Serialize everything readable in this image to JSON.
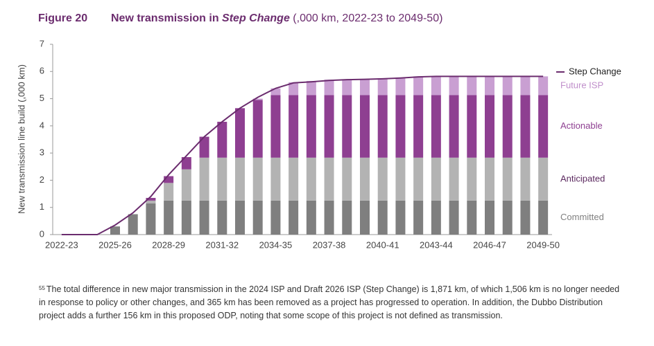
{
  "chart_data": {
    "type": "stacked_bar_line",
    "figure_label": "Figure 20",
    "title": "New transmission in",
    "title_emphasis": "Step Change",
    "subtitle": "(,000 km, 2022-23 to 2049-50)",
    "y_label": "New transmission line build (,000 km)",
    "categories": [
      "2022-23",
      null,
      null,
      "2025-26",
      null,
      null,
      "2028-29",
      null,
      null,
      "2031-32",
      null,
      null,
      "2034-35",
      null,
      null,
      "2037-38",
      null,
      null,
      "2040-41",
      null,
      null,
      "2043-44",
      null,
      null,
      "2046-47",
      null,
      null,
      "2049-50"
    ],
    "series": [
      {
        "name": "Committed",
        "color": "#7f7f7f",
        "label_color": "#808080",
        "values": [
          0,
          0,
          0,
          0.3,
          0.75,
          1.15,
          1.25,
          1.25,
          1.25,
          1.25,
          1.25,
          1.25,
          1.25,
          1.25,
          1.25,
          1.25,
          1.25,
          1.25,
          1.25,
          1.25,
          1.25,
          1.25,
          1.25,
          1.25,
          1.25,
          1.25,
          1.25,
          1.25
        ]
      },
      {
        "name": "Anticipated",
        "color": "#b3b3b3",
        "label_color": "#5c2a60",
        "values": [
          0,
          0,
          0,
          0,
          0,
          0.1,
          0.65,
          1.15,
          1.58,
          1.58,
          1.58,
          1.58,
          1.58,
          1.58,
          1.58,
          1.58,
          1.58,
          1.58,
          1.58,
          1.58,
          1.58,
          1.58,
          1.58,
          1.58,
          1.58,
          1.58,
          1.58,
          1.58
        ]
      },
      {
        "name": "Actionable",
        "color": "#8e3f91",
        "label_color": "#8e3f91",
        "values": [
          0,
          0,
          0,
          0,
          0,
          0.1,
          0.25,
          0.45,
          0.77,
          1.32,
          1.82,
          2.12,
          2.3,
          2.3,
          2.3,
          2.3,
          2.3,
          2.3,
          2.3,
          2.3,
          2.3,
          2.3,
          2.3,
          2.3,
          2.3,
          2.3,
          2.3,
          2.3
        ]
      },
      {
        "name": "Future ISP",
        "color": "#c99fd2",
        "label_color": "#c08fcb",
        "values": [
          0,
          0,
          0,
          0,
          0,
          0,
          0,
          0,
          0,
          0,
          0,
          0.05,
          0.25,
          0.47,
          0.52,
          0.57,
          0.57,
          0.59,
          0.62,
          0.65,
          0.69,
          0.69,
          0.69,
          0.69,
          0.69,
          0.69,
          0.69,
          0.69
        ]
      },
      {
        "name": "Step Change",
        "type": "line",
        "color": "#6b2c6e",
        "values": [
          0,
          0,
          0,
          0.35,
          0.8,
          1.4,
          2.2,
          2.9,
          3.6,
          4.15,
          4.65,
          5.05,
          5.38,
          5.58,
          5.62,
          5.67,
          5.7,
          5.71,
          5.73,
          5.76,
          5.8,
          5.82,
          5.82,
          5.82,
          5.82,
          5.82,
          5.82,
          5.82
        ]
      }
    ],
    "ylim": [
      0,
      7
    ],
    "yticks": [
      0,
      1,
      2,
      3,
      4,
      5,
      6,
      7
    ],
    "grid": false
  },
  "footnote": {
    "number": "55",
    "text": "The total difference in new major transmission in the 2024 ISP and Draft 2026 ISP (Step Change) is 1,871 km, of which 1,506 km is no longer needed in response to policy or other changes, and 365 km has been removed as a project has progressed to operation. In addition, the Dubbo Distribution project adds a further 156 km in this proposed ODP, noting that some scope of this project is not defined as transmission."
  }
}
